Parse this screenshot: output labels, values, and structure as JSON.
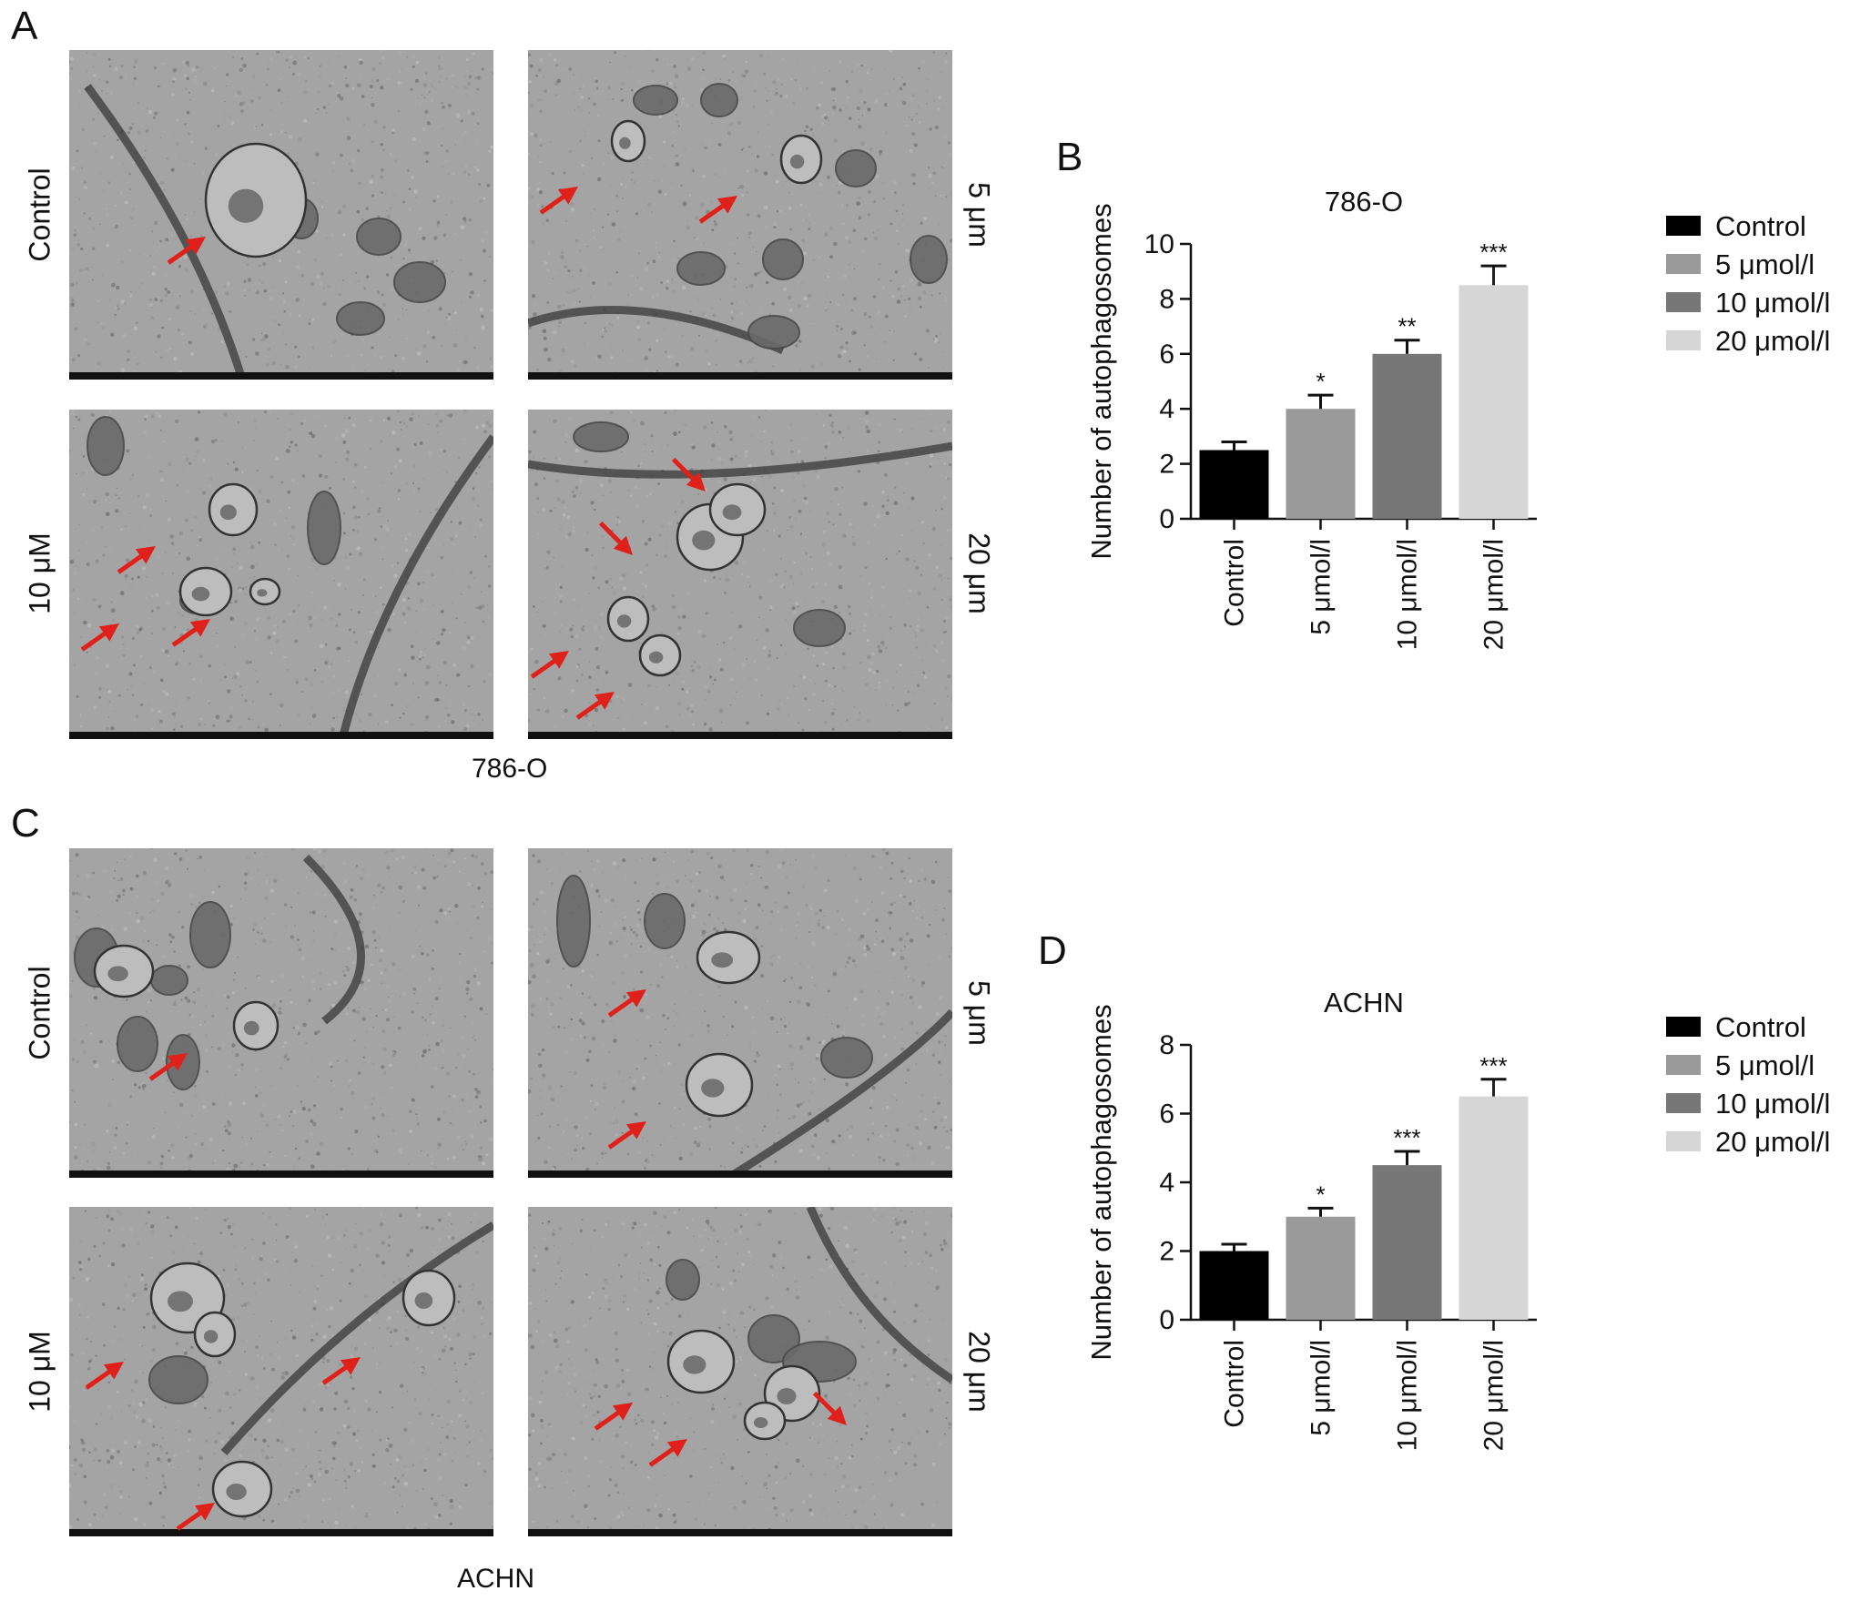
{
  "panels": {
    "A": {
      "letter": "A",
      "caption": "786-O",
      "row_labels": [
        "Control",
        "10 μM"
      ],
      "col_labels_right": [
        "5 μm",
        "20 μm"
      ]
    },
    "B": {
      "letter": "B"
    },
    "C": {
      "letter": "C",
      "caption": "ACHN",
      "row_labels": [
        "Control",
        "10 μM"
      ],
      "col_labels_right": [
        "5 μm",
        "20 μm"
      ]
    },
    "D": {
      "letter": "D"
    }
  },
  "colors": {
    "arrow": "#e0201b",
    "control": "#000000",
    "dose5": "#9a9a9a",
    "dose10": "#777777",
    "dose20": "#d6d6d6"
  },
  "chart_data": [
    {
      "type": "bar",
      "title": "786-O",
      "ylabel": "Number of autophagosomes",
      "xlabel": "",
      "categories": [
        "Control",
        "5 μmol/l",
        "10 μmol/l",
        "20 μmol/l"
      ],
      "values": [
        2.5,
        4.0,
        6.0,
        8.5
      ],
      "errors": [
        0.3,
        0.5,
        0.5,
        0.7
      ],
      "significance": [
        "",
        "*",
        "**",
        "***"
      ],
      "ylim": [
        0,
        10
      ],
      "yticks": [
        0,
        2,
        4,
        6,
        8,
        10
      ],
      "legend": [
        "Control",
        "5 μmol/l",
        "10 μmol/l",
        "20 μmol/l"
      ],
      "legend_position": "right",
      "grid": false
    },
    {
      "type": "bar",
      "title": "ACHN",
      "ylabel": "Number of autophagosomes",
      "xlabel": "",
      "categories": [
        "Control",
        "5 μmol/l",
        "10 μmol/l",
        "20 μmol/l"
      ],
      "values": [
        2.0,
        3.0,
        4.5,
        6.5
      ],
      "errors": [
        0.2,
        0.25,
        0.4,
        0.5
      ],
      "significance": [
        "",
        "*",
        "***",
        "***"
      ],
      "ylim": [
        0,
        8
      ],
      "yticks": [
        0,
        2,
        4,
        6,
        8
      ],
      "legend": [
        "Control",
        "5 μmol/l",
        "10 μmol/l",
        "20 μmol/l"
      ],
      "legend_position": "right",
      "grid": false
    }
  ]
}
